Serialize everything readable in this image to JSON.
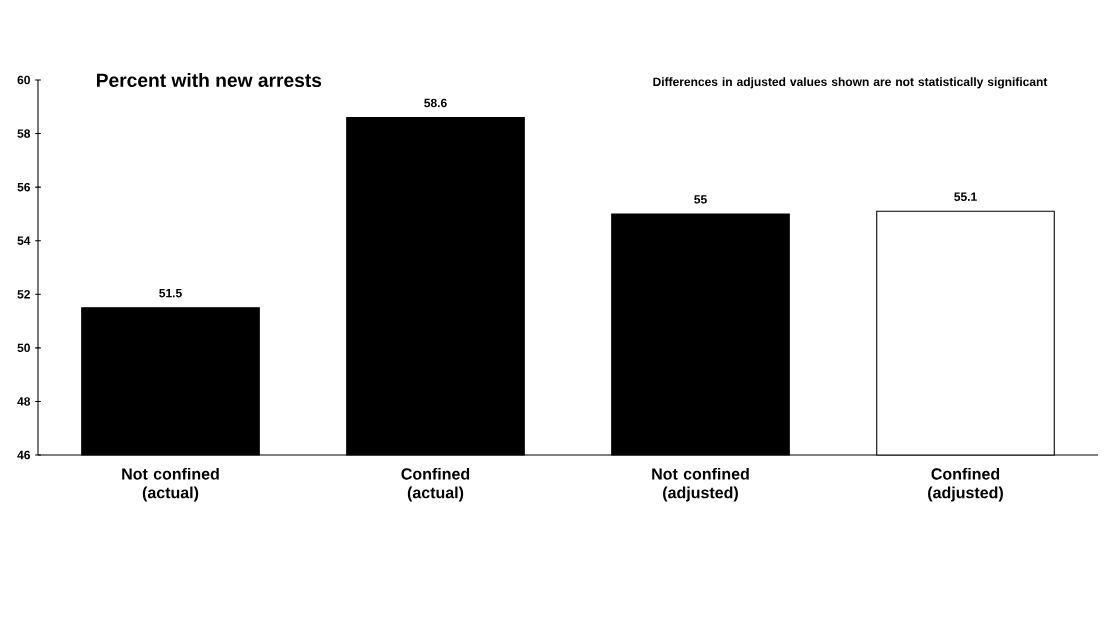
{
  "chart_data": {
    "type": "bar",
    "title": "Percent with new arrests",
    "annotations": [
      "Differences in adjusted values shown are not statistically significant"
    ],
    "categories": [
      "Not confined (actual)",
      "Confined (actual)",
      "Not confined (adjusted)",
      "Confined (adjusted)"
    ],
    "values": [
      51.5,
      58.6,
      55,
      55.1
    ],
    "colors": [
      "#000000",
      "#000000",
      "#000000",
      "#ffffff"
    ],
    "ylim": [
      46,
      60
    ],
    "yticks": [
      46,
      48,
      50,
      52,
      54,
      56,
      58,
      60
    ],
    "data_labels": true
  }
}
